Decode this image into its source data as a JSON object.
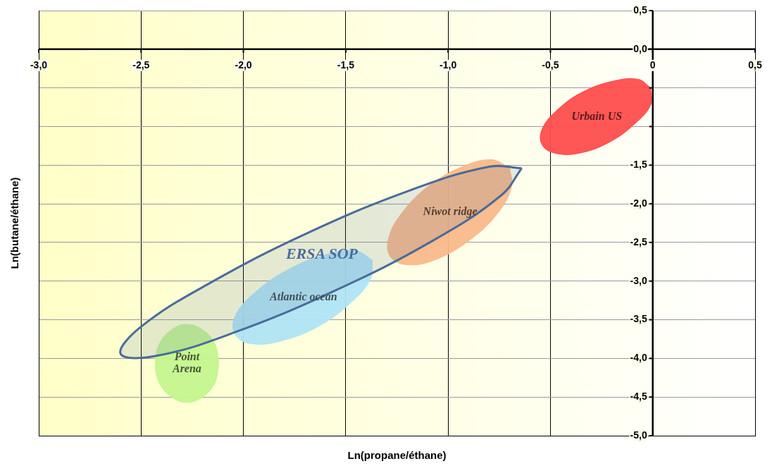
{
  "chart_data": {
    "type": "area",
    "xlabel": "Ln(propane/éthane)",
    "ylabel": "Ln(butane/éthane)",
    "xlim": [
      -3,
      0.5
    ],
    "ylim": [
      -5,
      0.5
    ],
    "xticks": [
      {
        "value": -3,
        "label": "-3,0"
      },
      {
        "value": -2.5,
        "label": "-2,5"
      },
      {
        "value": -2,
        "label": "-2,0"
      },
      {
        "value": -1.5,
        "label": "-1,5"
      },
      {
        "value": -1,
        "label": "-1,0"
      },
      {
        "value": -0.5,
        "label": "-0,5"
      },
      0,
      {
        "value": 0.5,
        "label": "0,5"
      }
    ],
    "yticks": [
      {
        "value": -5,
        "label": "-5,0"
      },
      {
        "value": -4.5,
        "label": "-4,5"
      },
      {
        "value": -4,
        "label": "-4,0"
      },
      {
        "value": -3.5,
        "label": "-3,5"
      },
      {
        "value": -3,
        "label": "-3,0"
      },
      {
        "value": -2.5,
        "label": "-2,5"
      },
      {
        "value": -2,
        "label": "-2,0"
      },
      {
        "value": -1.5,
        "label": "-1,5"
      },
      {
        "value": -1,
        "label": null
      },
      {
        "value": -0.5,
        "label": null
      },
      {
        "value": 0,
        "label": "0,0"
      },
      {
        "value": 0.5,
        "label": "0,5"
      }
    ],
    "grid": true,
    "legend": false,
    "marker": "none",
    "series": [
      {
        "name": "Urbain US",
        "color": "#ff4d4d",
        "x": [
          -0.01,
          -0.01,
          -0.09,
          -0.21,
          -0.35,
          -0.47,
          -0.54,
          -0.54,
          -0.46,
          -0.34,
          -0.19,
          -0.07,
          -0.01
        ],
        "values": [
          -0.5,
          -0.72,
          -0.97,
          -1.2,
          -1.34,
          -1.35,
          -1.24,
          -1.03,
          -0.77,
          -0.55,
          -0.41,
          -0.39,
          -0.5
        ]
      },
      {
        "name": "Niwot ridge",
        "color": "#f9b98a",
        "x": [
          -0.7,
          -0.69,
          -0.76,
          -0.89,
          -1.05,
          -1.19,
          -1.28,
          -1.29,
          -1.22,
          -1.09,
          -0.93,
          -0.79,
          -0.7
        ],
        "values": [
          -1.53,
          -1.78,
          -2.13,
          -2.46,
          -2.71,
          -2.79,
          -2.69,
          -2.44,
          -2.1,
          -1.76,
          -1.52,
          -1.43,
          -1.53
        ]
      },
      {
        "name": "Atlantic ocean",
        "color": "#b0e4f4",
        "x": [
          -1.37,
          -1.38,
          -1.48,
          -1.63,
          -1.81,
          -1.96,
          -2.04,
          -2.04,
          -1.94,
          -1.78,
          -1.6,
          -1.45,
          -1.37
        ],
        "values": [
          -2.73,
          -2.98,
          -3.29,
          -3.58,
          -3.77,
          -3.81,
          -3.69,
          -3.45,
          -3.14,
          -2.85,
          -2.66,
          -2.61,
          -2.73
        ]
      },
      {
        "name": "Point Arena",
        "color": "#c4f58f",
        "x": [
          -2.12,
          -2.14,
          -2.2,
          -2.28,
          -2.35,
          -2.41,
          -2.43,
          -2.41,
          -2.35,
          -2.28,
          -2.2,
          -2.14,
          -2.12
        ],
        "values": [
          -4.06,
          -3.81,
          -3.63,
          -3.56,
          -3.63,
          -3.81,
          -4.06,
          -4.32,
          -4.5,
          -4.57,
          -4.5,
          -4.32,
          -4.06
        ]
      },
      {
        "name": "ERSA SOP",
        "color": "#4a6b9a",
        "x": [
          -0.64,
          -0.74,
          -1.07,
          -1.55,
          -2.05,
          -2.43,
          -2.6,
          -2.5,
          -2.16,
          -1.68,
          -1.18,
          -0.8,
          -0.64
        ],
        "values": [
          -1.54,
          -1.89,
          -2.47,
          -3.12,
          -3.67,
          -3.97,
          -3.94,
          -3.59,
          -3.02,
          -2.37,
          -1.82,
          -1.52,
          -1.54
        ]
      }
    ]
  }
}
